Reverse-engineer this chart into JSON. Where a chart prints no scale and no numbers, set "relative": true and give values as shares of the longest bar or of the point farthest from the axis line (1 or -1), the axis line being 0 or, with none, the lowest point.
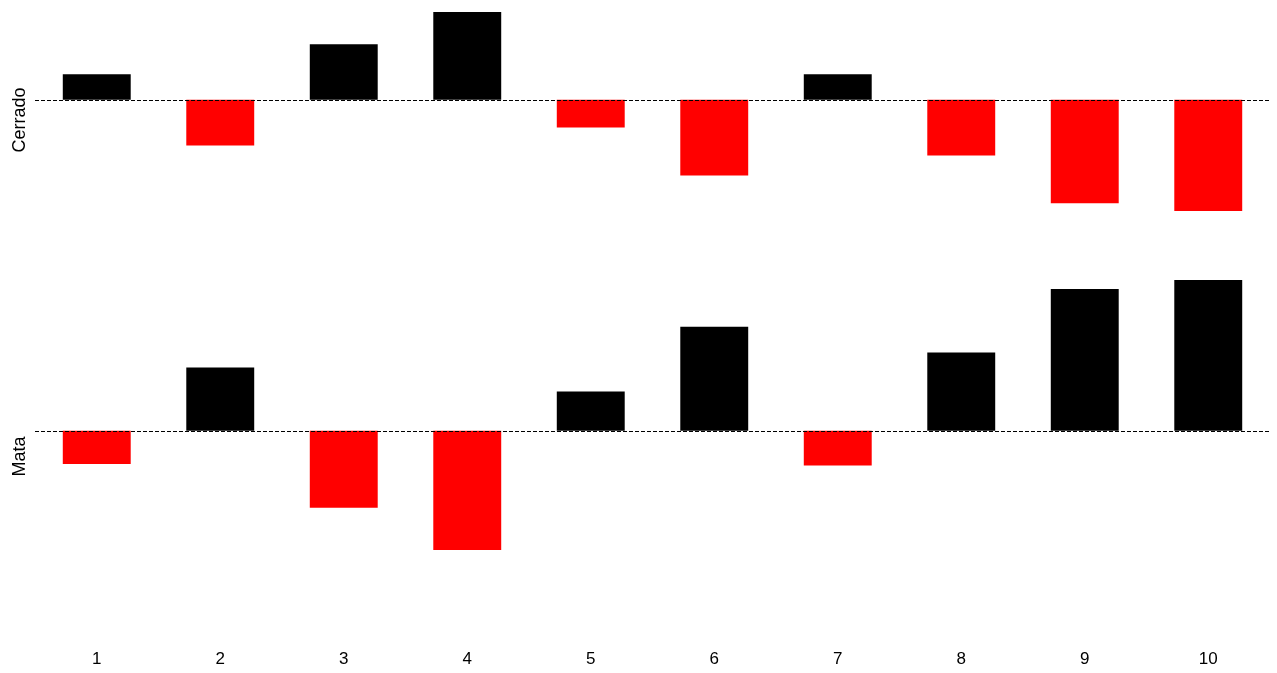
{
  "chart_data": [
    {
      "type": "bar",
      "ylabel": "Cerrado",
      "relative": true,
      "categories": [
        "1",
        "2",
        "3",
        "4",
        "5",
        "6",
        "7",
        "8",
        "9",
        "10"
      ],
      "values": [
        0.23,
        -0.41,
        0.5,
        0.79,
        -0.25,
        -0.68,
        0.23,
        -0.5,
        -0.93,
        -1
      ],
      "colors": [
        "#000000",
        "#ff0000",
        "#000000",
        "#000000",
        "#ff0000",
        "#ff0000",
        "#000000",
        "#ff0000",
        "#ff0000",
        "#ff0000"
      ],
      "ref_lines": [
        {
          "axis": "y",
          "value": 0,
          "color": "#000000",
          "line_style": "dashed"
        }
      ],
      "tick_labels": false
    },
    {
      "type": "bar",
      "ylabel": "Mata",
      "relative": true,
      "categories": [
        "1",
        "2",
        "3",
        "4",
        "5",
        "6",
        "7",
        "8",
        "9",
        "10"
      ],
      "values": [
        -0.22,
        0.42,
        -0.51,
        -0.79,
        0.26,
        0.69,
        -0.23,
        0.52,
        0.94,
        1
      ],
      "colors": [
        "#ff0000",
        "#000000",
        "#ff0000",
        "#ff0000",
        "#000000",
        "#000000",
        "#ff0000",
        "#000000",
        "#000000",
        "#000000"
      ],
      "ref_lines": [
        {
          "axis": "y",
          "value": 0,
          "color": "#000000",
          "line_style": "dashed"
        }
      ],
      "tick_labels": "x"
    }
  ]
}
